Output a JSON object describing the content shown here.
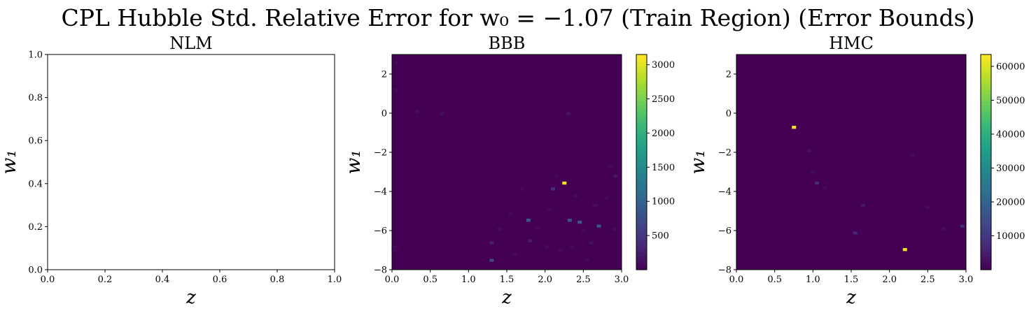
{
  "figure": {
    "title": "CPL Hubble Std. Relative Error for w₀ = −1.07 (Train Region) (Error Bounds)"
  },
  "colors": {
    "viridis": [
      "#440154",
      "#482878",
      "#3e4989",
      "#31688e",
      "#26828e",
      "#1f9e89",
      "#35b779",
      "#6ece58",
      "#b5de2b",
      "#fde725"
    ],
    "background": "#440154"
  },
  "chart_data": [
    {
      "type": "heatmap",
      "title": "NLM",
      "xlabel": "z",
      "ylabel": "w₁",
      "xlim": [
        0,
        1
      ],
      "ylim": [
        0,
        1
      ],
      "xticks": [
        "0.0",
        "0.2",
        "0.4",
        "0.6",
        "0.8",
        "1.0"
      ],
      "yticks": [
        "0.0",
        "0.2",
        "0.4",
        "0.6",
        "0.8",
        "1.0"
      ],
      "points": [],
      "colorbar": null
    },
    {
      "type": "heatmap",
      "title": "BBB",
      "xlabel": "z",
      "ylabel": "w₁",
      "xlim": [
        0,
        3
      ],
      "ylim": [
        -8,
        3
      ],
      "xticks": [
        "0.0",
        "0.5",
        "1.0",
        "1.5",
        "2.0",
        "2.5",
        "3.0"
      ],
      "yticks": [
        "−8",
        "−6",
        "−4",
        "−2",
        "0",
        "2"
      ],
      "colorbar": {
        "min": 0,
        "max": 3150,
        "ticks": [
          "500",
          "1000",
          "1500",
          "2000",
          "2500",
          "3000"
        ]
      },
      "points": [
        {
          "z": 2.25,
          "w1": -3.55,
          "value": 3100
        },
        {
          "z": 1.78,
          "w1": -5.45,
          "value": 900
        },
        {
          "z": 2.32,
          "w1": -5.45,
          "value": 800
        },
        {
          "z": 2.45,
          "w1": -5.55,
          "value": 900
        },
        {
          "z": 2.7,
          "w1": -5.75,
          "value": 850
        },
        {
          "z": 1.3,
          "w1": -7.5,
          "value": 700
        },
        {
          "z": 2.1,
          "w1": -3.85,
          "value": 450
        },
        {
          "z": 1.3,
          "w1": -6.6,
          "value": 250
        },
        {
          "z": 1.8,
          "w1": -6.5,
          "value": 220
        },
        {
          "z": 2.92,
          "w1": -3.2,
          "value": 200
        },
        {
          "z": 2.3,
          "w1": 0.0,
          "value": 150
        },
        {
          "z": 0.65,
          "w1": 0.0,
          "value": 130
        },
        {
          "z": 0.33,
          "w1": 0.1,
          "value": 110
        },
        {
          "z": 2.65,
          "w1": -4.7,
          "value": 120
        },
        {
          "z": 2.6,
          "w1": -6.6,
          "value": 130
        },
        {
          "z": 2.9,
          "w1": -5.9,
          "value": 110
        },
        {
          "z": 2.02,
          "w1": -6.8,
          "value": 100
        },
        {
          "z": 1.55,
          "w1": -5.1,
          "value": 100
        },
        {
          "z": 2.4,
          "w1": -4.2,
          "value": 90
        },
        {
          "z": 1.4,
          "w1": -5.9,
          "value": 90
        },
        {
          "z": 2.2,
          "w1": -7.0,
          "value": 90
        },
        {
          "z": 2.5,
          "w1": -6.0,
          "value": 85
        },
        {
          "z": 2.8,
          "w1": -4.3,
          "value": 80
        },
        {
          "z": 2.15,
          "w1": -3.2,
          "value": 80
        },
        {
          "z": 1.6,
          "w1": -7.2,
          "value": 90
        },
        {
          "z": 2.55,
          "w1": -7.5,
          "value": 80
        },
        {
          "z": 0.05,
          "w1": 1.2,
          "value": 90
        },
        {
          "z": 0.05,
          "w1": 2.6,
          "value": 70
        },
        {
          "z": 0.02,
          "w1": -7.0,
          "value": 80
        },
        {
          "z": 0.02,
          "w1": -6.8,
          "value": 70
        },
        {
          "z": 1.9,
          "w1": -5.9,
          "value": 70
        },
        {
          "z": 2.35,
          "w1": -6.8,
          "value": 75
        },
        {
          "z": 2.05,
          "w1": -4.9,
          "value": 70
        },
        {
          "z": 1.7,
          "w1": -3.9,
          "value": 65
        },
        {
          "z": 2.85,
          "w1": -2.7,
          "value": 65
        }
      ]
    },
    {
      "type": "heatmap",
      "title": "HMC",
      "xlabel": "z",
      "ylabel": "w₁",
      "xlim": [
        0,
        3
      ],
      "ylim": [
        -8,
        3
      ],
      "xticks": [
        "0.0",
        "0.5",
        "1.0",
        "1.5",
        "2.0",
        "2.5",
        "3.0"
      ],
      "yticks": [
        "−8",
        "−6",
        "−4",
        "−2",
        "0",
        "2"
      ],
      "colorbar": {
        "min": 0,
        "max": 63500,
        "ticks": [
          "10000",
          "20000",
          "30000",
          "40000",
          "50000",
          "60000"
        ]
      },
      "points": [
        {
          "z": 0.75,
          "w1": -0.7,
          "value": 63000
        },
        {
          "z": 2.2,
          "w1": -6.95,
          "value": 62000
        },
        {
          "z": 1.05,
          "w1": -3.55,
          "value": 7000
        },
        {
          "z": 1.55,
          "w1": -6.1,
          "value": 7000
        },
        {
          "z": 2.95,
          "w1": -5.75,
          "value": 8000
        },
        {
          "z": 1.65,
          "w1": -4.7,
          "value": 4000
        },
        {
          "z": 0.95,
          "w1": -1.9,
          "value": 3000
        },
        {
          "z": 1.0,
          "w1": -3.0,
          "value": 2500
        },
        {
          "z": 2.5,
          "w1": -4.8,
          "value": 2500
        },
        {
          "z": 2.7,
          "w1": -5.9,
          "value": 2200
        },
        {
          "z": 2.3,
          "w1": -2.1,
          "value": 2000
        },
        {
          "z": 1.15,
          "w1": -3.8,
          "value": 1800
        }
      ]
    }
  ]
}
